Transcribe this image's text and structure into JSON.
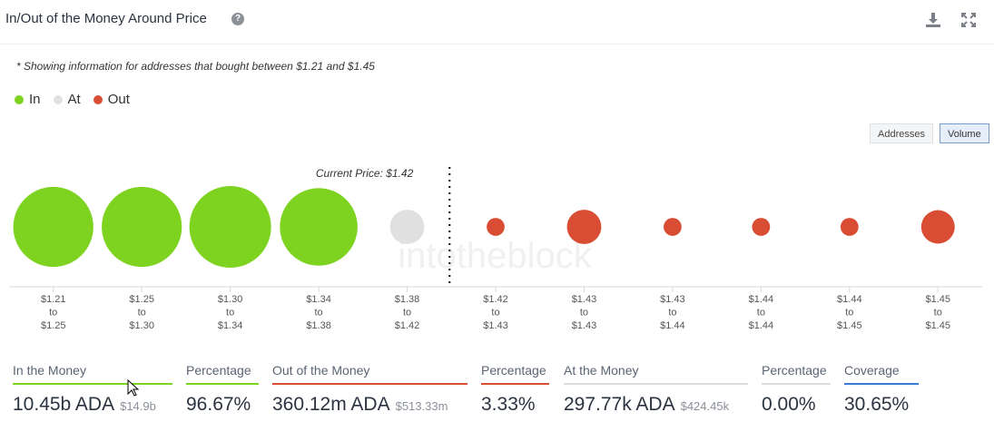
{
  "header": {
    "title": "In/Out of the Money Around Price",
    "help_glyph": "?"
  },
  "note": "* Showing information for addresses that bought between $1.21 and $1.45",
  "legend": [
    {
      "label": "In",
      "color": "#7ed321"
    },
    {
      "label": "At",
      "color": "#e0e0e0"
    },
    {
      "label": "Out",
      "color": "#d94d35"
    }
  ],
  "toggles": {
    "addresses": "Addresses",
    "volume": "Volume",
    "selected": "Volume"
  },
  "chart_data": {
    "type": "scatter",
    "subtype": "bubble",
    "current_price_label": "Current Price: $1.42",
    "watermark": "intotheblock",
    "buckets": [
      {
        "from": "$1.21",
        "to": "$1.25",
        "status": "in",
        "relative_volume": 0.98
      },
      {
        "from": "$1.25",
        "to": "$1.30",
        "status": "in",
        "relative_volume": 0.98
      },
      {
        "from": "$1.30",
        "to": "$1.34",
        "status": "in",
        "relative_volume": 1.0
      },
      {
        "from": "$1.34",
        "to": "$1.38",
        "status": "in",
        "relative_volume": 0.95
      },
      {
        "from": "$1.38",
        "to": "$1.42",
        "status": "at",
        "relative_volume": 0.42
      },
      {
        "from": "$1.42",
        "to": "$1.43",
        "status": "out",
        "relative_volume": 0.22
      },
      {
        "from": "$1.43",
        "to": "$1.43",
        "status": "out",
        "relative_volume": 0.42
      },
      {
        "from": "$1.43",
        "to": "$1.44",
        "status": "out",
        "relative_volume": 0.22
      },
      {
        "from": "$1.44",
        "to": "$1.44",
        "status": "out",
        "relative_volume": 0.22
      },
      {
        "from": "$1.44",
        "to": "$1.45",
        "status": "out",
        "relative_volume": 0.22
      },
      {
        "from": "$1.45",
        "to": "$1.45",
        "status": "out",
        "relative_volume": 0.41
      }
    ],
    "range_word": "to",
    "colors": {
      "in": "#7ed321",
      "at": "#e0e0e0",
      "out": "#d94d35"
    }
  },
  "metrics": [
    {
      "label": "In the Money",
      "value": "10.45b ADA",
      "sub": "$14.9b",
      "color": "#7ed321"
    },
    {
      "label": "Percentage",
      "value": "96.67%",
      "sub": "",
      "color": "#7ed321"
    },
    {
      "label": "Out of the Money",
      "value": "360.12m ADA",
      "sub": "$513.33m",
      "color": "#d94d35"
    },
    {
      "label": "Percentage",
      "value": "3.33%",
      "sub": "",
      "color": "#d94d35"
    },
    {
      "label": "At the Money",
      "value": "297.77k ADA",
      "sub": "$424.45k",
      "color": "#dddddd"
    },
    {
      "label": "Percentage",
      "value": "0.00%",
      "sub": "",
      "color": "#dddddd"
    },
    {
      "label": "Coverage",
      "value": "30.65%",
      "sub": "",
      "color": "#3a7bd5"
    }
  ]
}
